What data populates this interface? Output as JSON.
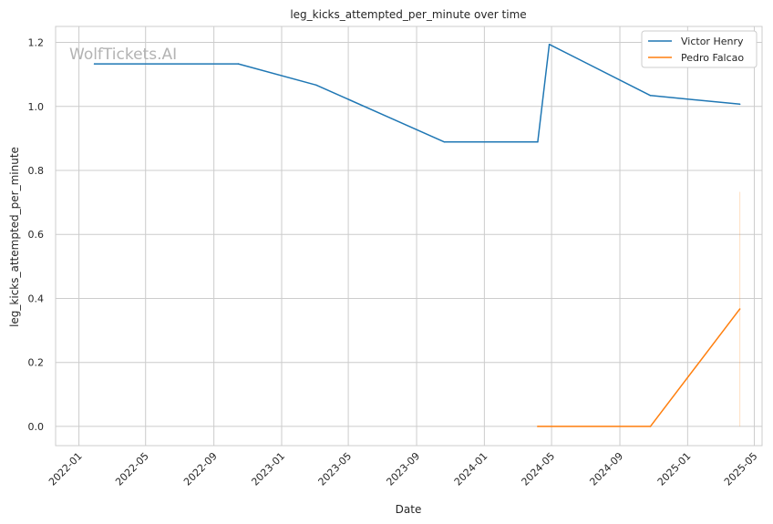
{
  "chart_data": {
    "type": "line",
    "title": "leg_kicks_attempted_per_minute over time",
    "xlabel": "Date",
    "ylabel": "leg_kicks_attempted_per_minute",
    "watermark": "WolfTickets.AI",
    "x_is_date": true,
    "xlim": [
      "2021-11-20",
      "2025-05-15"
    ],
    "ylim": [
      -0.06,
      1.25
    ],
    "x_ticks": [
      "2022-01",
      "2022-05",
      "2022-09",
      "2023-01",
      "2023-05",
      "2023-09",
      "2024-01",
      "2024-05",
      "2024-09",
      "2025-01",
      "2025-05"
    ],
    "y_ticks": [
      0.0,
      0.2,
      0.4,
      0.6,
      0.8,
      1.0,
      1.2
    ],
    "y_tick_labels": [
      "0.0",
      "0.2",
      "0.4",
      "0.6",
      "0.8",
      "1.0",
      "1.2"
    ],
    "grid": true,
    "legend_position": "top-right",
    "series": [
      {
        "name": "Victor Henry",
        "color": "#1f77b4",
        "points": [
          {
            "x": "2022-01-29",
            "y": 1.133
          },
          {
            "x": "2022-10-15",
            "y": 1.133
          },
          {
            "x": "2023-03-04",
            "y": 1.067
          },
          {
            "x": "2023-10-21",
            "y": 0.889
          },
          {
            "x": "2024-04-06",
            "y": 0.889
          },
          {
            "x": "2024-04-27",
            "y": 1.194
          },
          {
            "x": "2024-10-26",
            "y": 1.034
          },
          {
            "x": "2025-04-05",
            "y": 1.007
          }
        ]
      },
      {
        "name": "Pedro Falcao",
        "color": "#ff7f0e",
        "points": [
          {
            "x": "2024-04-06",
            "y": 0.0
          },
          {
            "x": "2024-10-26",
            "y": 0.0
          },
          {
            "x": "2025-04-05",
            "y": 0.367
          }
        ],
        "band": {
          "x": "2025-04-05",
          "y_low": 0.0,
          "y_high": 0.733
        }
      }
    ]
  }
}
